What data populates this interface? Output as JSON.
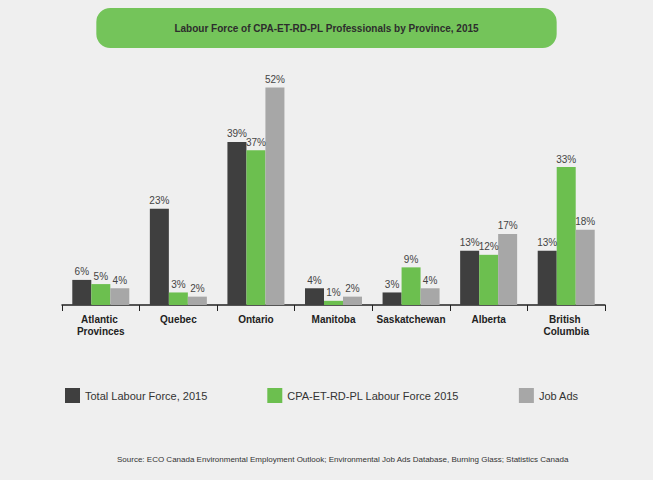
{
  "chart_data": {
    "type": "bar",
    "title": "Labour Force of CPA-ET-RD-PL Professionals by Province, 2015",
    "source": "Source: ECO Canada Environmental Employment Outlook; Environmental Job Ads Database, Burning Glass; Statistics Canada",
    "categories": [
      "Atlantic Provinces",
      "Quebec",
      "Ontario",
      "Manitoba",
      "Saskatchewan",
      "Alberta",
      "British Columbia"
    ],
    "series": [
      {
        "name": "Total Labour Force, 2015",
        "color": "#3f3f3f",
        "values": [
          6,
          23,
          39,
          4,
          3,
          13,
          13
        ],
        "value_labels": [
          "6%",
          "23%",
          "39%",
          "4%",
          "3%",
          "13%",
          "13%"
        ]
      },
      {
        "name": "CPA-ET-RD-PL Labour Force 2015",
        "color": "#6cbf4f",
        "values": [
          5,
          3,
          37,
          1,
          9,
          12,
          33
        ],
        "value_labels": [
          "5%",
          "3%",
          "37%",
          "1%",
          "9%",
          "12%",
          "33%"
        ]
      },
      {
        "name": "Job Ads",
        "color": "#a7a7a7",
        "values": [
          4,
          2,
          52,
          2,
          4,
          17,
          18
        ],
        "value_labels": [
          "4%",
          "2%",
          "52%",
          "2%",
          "4%",
          "17%",
          "18%"
        ]
      }
    ],
    "ylim": [
      0,
      55
    ],
    "data_labels": true,
    "tick_labels": "x",
    "grid": false,
    "legend": "bottom"
  }
}
